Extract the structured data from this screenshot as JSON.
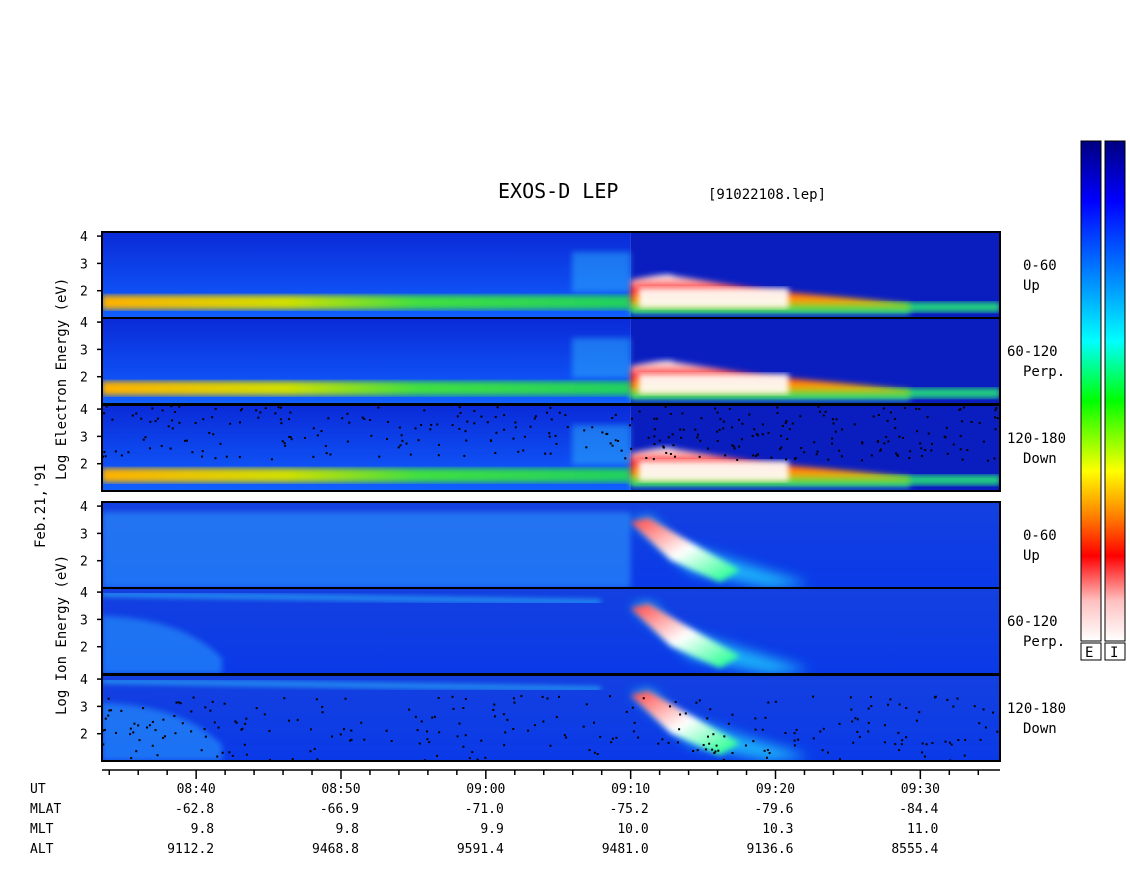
{
  "chart_data": {
    "type": "heatmap",
    "title": "EXOS-D LEP",
    "file_label": "[91022108.lep]",
    "date_label": "Feb.21,'91",
    "x_range_minutes": [
      "08:33",
      "09:35"
    ],
    "ticks": {
      "UT": [
        "08:40",
        "08:50",
        "09:00",
        "09:10",
        "09:20",
        "09:30"
      ],
      "MLAT": [
        "-62.8",
        "-66.9",
        "-71.0",
        "-75.2",
        "-79.6",
        "-84.4"
      ],
      "MLT": [
        "9.8",
        "9.8",
        "9.9",
        "10.0",
        "10.3",
        "11.0"
      ],
      "ALT": [
        "9112.2",
        "9468.8",
        "9591.4",
        "9481.0",
        "9136.6",
        "8555.4"
      ]
    },
    "row_labels": [
      "UT",
      "MLAT",
      "MLT",
      "ALT"
    ],
    "y_ticks": [
      "4",
      "3",
      "2"
    ],
    "y_range_log_eV": [
      1,
      4.1
    ],
    "electron_ylabel": "Log   Electron   Energy  (eV)",
    "ion_ylabel": "Log   Ion   Energy  (eV)",
    "panels": [
      {
        "species": "electron",
        "angle": "0-60",
        "dir": "Up"
      },
      {
        "species": "electron",
        "angle": "60-120",
        "dir": "Perp."
      },
      {
        "species": "electron",
        "angle": "120-180",
        "dir": "Down"
      },
      {
        "species": "ion",
        "angle": "0-60",
        "dir": "Up"
      },
      {
        "species": "ion",
        "angle": "60-120",
        "dir": "Perp."
      },
      {
        "species": "ion",
        "angle": "120-180",
        "dir": "Down"
      }
    ],
    "colorbar_labels": [
      "E",
      "I"
    ],
    "colorscale": [
      "#000080",
      "#0000ff",
      "#00a0ff",
      "#00ffff",
      "#00ff00",
      "#ffff00",
      "#ff8000",
      "#ff0000",
      "#ffc0c0",
      "#ffffff"
    ]
  }
}
